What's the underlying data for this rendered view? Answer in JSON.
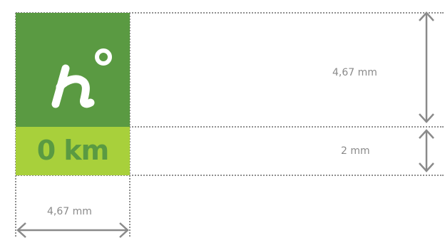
{
  "logo": {
    "brand_text": "0 km",
    "icon": "h-degree-logo-icon",
    "colors": {
      "dark_green": "#5a9a42",
      "lime_green": "#a8d03b"
    }
  },
  "dimensions": {
    "height_top": "4,67 mm",
    "height_bottom": "2 mm",
    "width": "4,67 mm"
  }
}
